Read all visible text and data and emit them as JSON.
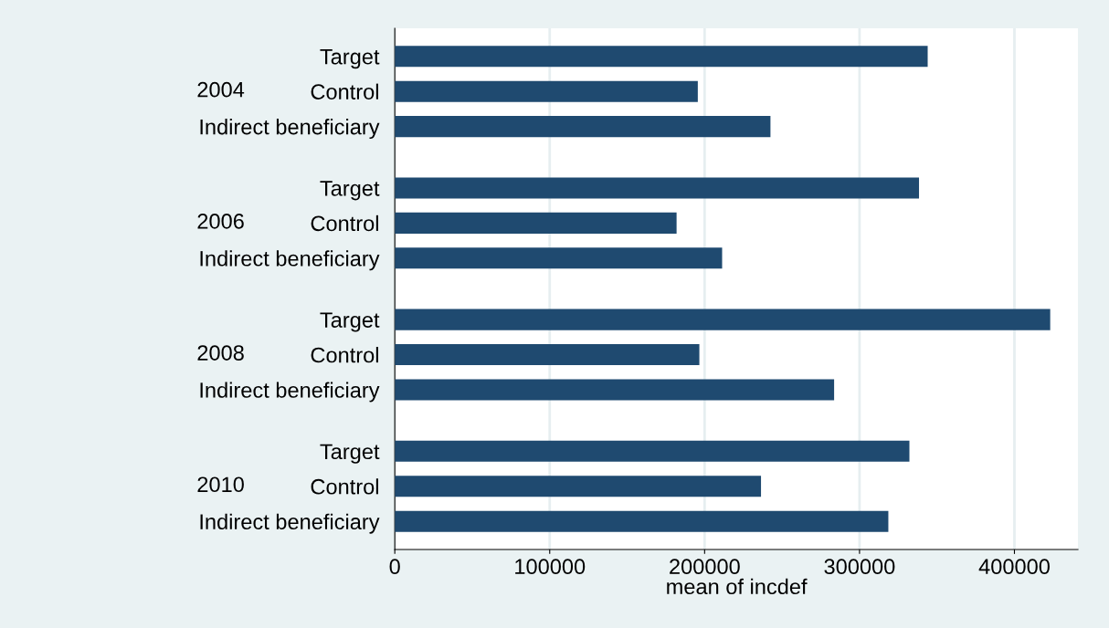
{
  "chart_data": {
    "type": "bar",
    "orientation": "horizontal",
    "categories": [
      "Target",
      "Control",
      "Indirect beneficiary",
      "Target",
      "Control",
      "Indirect beneficiary",
      "Target",
      "Control",
      "Indirect beneficiary",
      "Target",
      "Control",
      "Indirect beneficiary"
    ],
    "values": [
      344000,
      195600,
      242500,
      338400,
      181900,
      211300,
      423100,
      196600,
      283600,
      332200,
      236400,
      318600
    ],
    "color": "#1f4a70",
    "annotations": [
      "2004",
      "2006",
      "2008",
      "2010"
    ],
    "xlabel": "mean of incdef",
    "xlim": [
      0,
      441000
    ],
    "xticks": [
      0,
      100000,
      200000,
      300000,
      400000
    ],
    "grid": "x"
  }
}
